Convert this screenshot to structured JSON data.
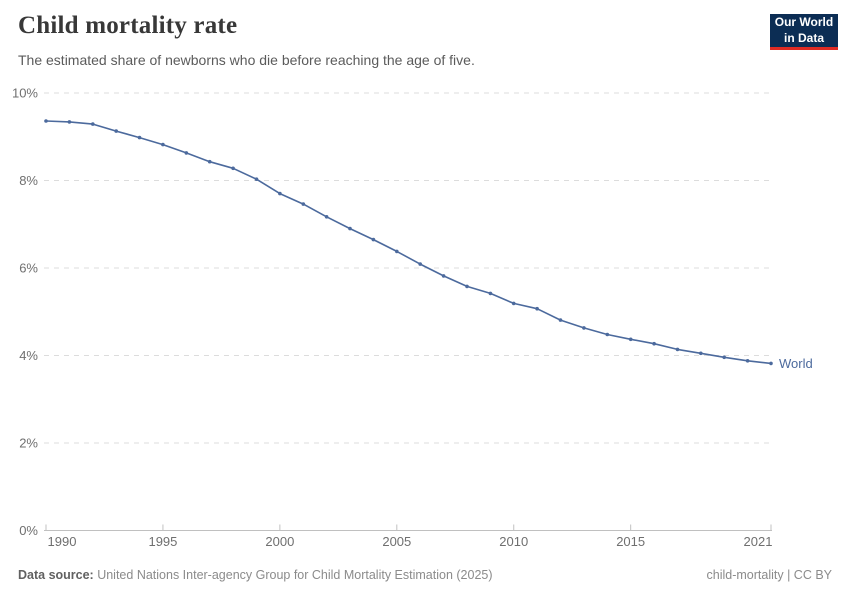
{
  "header": {
    "title": "Child mortality rate",
    "subtitle": "The estimated share of newborns who die before reaching the age of five.",
    "logo": {
      "line1": "Our World",
      "line2": "in Data"
    }
  },
  "footer": {
    "source_label": "Data source:",
    "source_text": " United Nations Inter-agency Group for Child Mortality Estimation (2025)",
    "license_text": "child-mortality | CC BY"
  },
  "colors": {
    "line": "#4c6a9d",
    "grid": "#dcdcdc",
    "axis": "#c0c0c0",
    "tick_label": "#6f6f6f",
    "logo_bg": "#0c2d54",
    "logo_red": "#e02b23"
  },
  "chart_data": {
    "type": "line",
    "title": "Child mortality rate",
    "subtitle": "The estimated share of newborns who die before reaching the age of five.",
    "xlabel": "",
    "ylabel": "",
    "xlim": [
      1990,
      2021
    ],
    "ylim": [
      0,
      10
    ],
    "grid": "horizontal-dashed",
    "legend_position": "end-of-line-label",
    "y_ticks": [
      {
        "value": 0,
        "label": "0%"
      },
      {
        "value": 2,
        "label": "2%"
      },
      {
        "value": 4,
        "label": "4%"
      },
      {
        "value": 6,
        "label": "6%"
      },
      {
        "value": 8,
        "label": "8%"
      },
      {
        "value": 10,
        "label": "10%"
      }
    ],
    "x_ticks": [
      {
        "value": 1990,
        "label": "1990"
      },
      {
        "value": 1995,
        "label": "1995"
      },
      {
        "value": 2000,
        "label": "2000"
      },
      {
        "value": 2005,
        "label": "2005"
      },
      {
        "value": 2010,
        "label": "2010"
      },
      {
        "value": 2015,
        "label": "2015"
      },
      {
        "value": 2021,
        "label": "2021"
      }
    ],
    "series": [
      {
        "name": "World",
        "color": "#4c6a9d",
        "unit": "%",
        "x": [
          1990,
          1991,
          1992,
          1993,
          1994,
          1995,
          1996,
          1997,
          1998,
          1999,
          2000,
          2001,
          2002,
          2003,
          2004,
          2005,
          2006,
          2007,
          2008,
          2009,
          2010,
          2011,
          2012,
          2013,
          2014,
          2015,
          2016,
          2017,
          2018,
          2019,
          2020,
          2021
        ],
        "values": [
          9.36,
          9.34,
          9.29,
          9.13,
          8.98,
          8.82,
          8.63,
          8.43,
          8.28,
          8.03,
          7.7,
          7.46,
          7.17,
          6.9,
          6.65,
          6.38,
          6.09,
          5.82,
          5.58,
          5.42,
          5.19,
          5.07,
          4.81,
          4.63,
          4.48,
          4.37,
          4.27,
          4.14,
          4.05,
          3.96,
          3.88,
          3.82
        ]
      }
    ]
  }
}
